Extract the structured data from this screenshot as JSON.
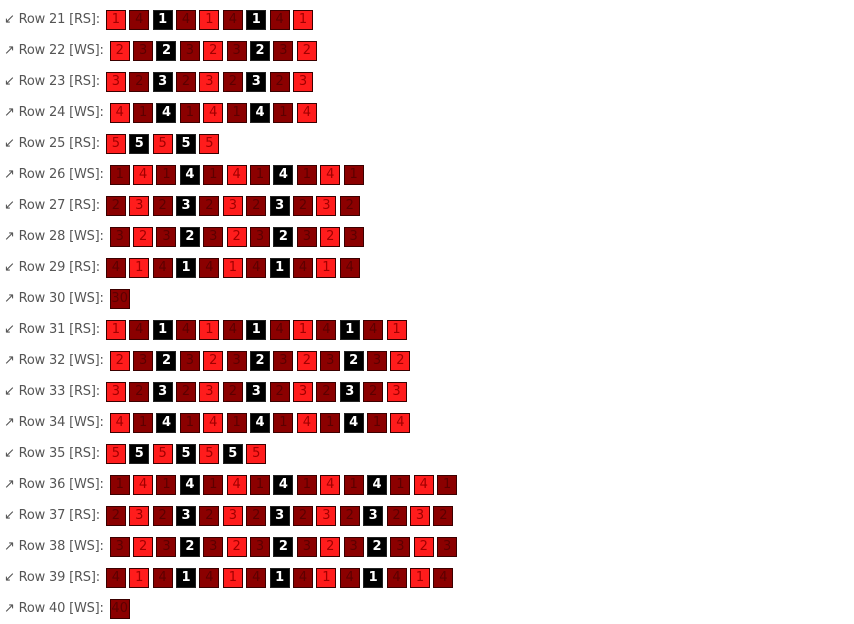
{
  "colors": {
    "r": "#ff1c1c",
    "d": "#8b0000",
    "k": "#000000"
  },
  "icons": {
    "RS": "arrow-down-left-icon ↙",
    "WS": "arrow-up-right-icon ↗"
  },
  "rows": [
    {
      "label": "↙ Row 21 [RS]:",
      "side": "RS",
      "colors": "rdkdrdkdr",
      "values": [
        "1",
        "4",
        "1",
        "4",
        "1",
        "4",
        "1",
        "4",
        "1"
      ]
    },
    {
      "label": "↗ Row 22 [WS]:",
      "side": "WS",
      "colors": "rdkdrdkdr",
      "values": [
        "2",
        "3",
        "2",
        "3",
        "2",
        "3",
        "2",
        "3",
        "2"
      ]
    },
    {
      "label": "↙ Row 23 [RS]:",
      "side": "RS",
      "colors": "rdkdrdkdr",
      "values": [
        "3",
        "2",
        "3",
        "2",
        "3",
        "2",
        "3",
        "2",
        "3"
      ]
    },
    {
      "label": "↗ Row 24 [WS]:",
      "side": "WS",
      "colors": "rdkdrdkdr",
      "values": [
        "4",
        "1",
        "4",
        "1",
        "4",
        "1",
        "4",
        "1",
        "4"
      ]
    },
    {
      "label": "↙ Row 25 [RS]:",
      "side": "RS",
      "colors": "rkrkr",
      "values": [
        "5",
        "5",
        "5",
        "5",
        "5"
      ]
    },
    {
      "label": "↗ Row 26 [WS]:",
      "side": "WS",
      "colors": "drdkdrdkdrd",
      "values": [
        "1",
        "4",
        "1",
        "4",
        "1",
        "4",
        "1",
        "4",
        "1",
        "4",
        "1"
      ]
    },
    {
      "label": "↙ Row 27 [RS]:",
      "side": "RS",
      "colors": "drdkdrdkdrd",
      "values": [
        "2",
        "3",
        "2",
        "3",
        "2",
        "3",
        "2",
        "3",
        "2",
        "3",
        "2"
      ]
    },
    {
      "label": "↗ Row 28 [WS]:",
      "side": "WS",
      "colors": "drdkdrdkdrd",
      "values": [
        "3",
        "2",
        "3",
        "2",
        "3",
        "2",
        "3",
        "2",
        "3",
        "2",
        "3"
      ]
    },
    {
      "label": "↙ Row 29 [RS]:",
      "side": "RS",
      "colors": "drdkdrdkdrd",
      "values": [
        "4",
        "1",
        "4",
        "1",
        "4",
        "1",
        "4",
        "1",
        "4",
        "1",
        "4"
      ]
    },
    {
      "label": "↗ Row 30 [WS]:",
      "side": "WS",
      "colors": "d",
      "values": [
        "30"
      ]
    },
    {
      "label": "↙ Row 31 [RS]:",
      "side": "RS",
      "colors": "rdkdrdkdrdkdr",
      "values": [
        "1",
        "4",
        "1",
        "4",
        "1",
        "4",
        "1",
        "4",
        "1",
        "4",
        "1",
        "4",
        "1"
      ]
    },
    {
      "label": "↗ Row 32 [WS]:",
      "side": "WS",
      "colors": "rdkdrdkdrdkdr",
      "values": [
        "2",
        "3",
        "2",
        "3",
        "2",
        "3",
        "2",
        "3",
        "2",
        "3",
        "2",
        "3",
        "2"
      ]
    },
    {
      "label": "↙ Row 33 [RS]:",
      "side": "RS",
      "colors": "rdkdrdkdrdkdr",
      "values": [
        "3",
        "2",
        "3",
        "2",
        "3",
        "2",
        "3",
        "2",
        "3",
        "2",
        "3",
        "2",
        "3"
      ]
    },
    {
      "label": "↗ Row 34 [WS]:",
      "side": "WS",
      "colors": "rdkdrdkdrdkdr",
      "values": [
        "4",
        "1",
        "4",
        "1",
        "4",
        "1",
        "4",
        "1",
        "4",
        "1",
        "4",
        "1",
        "4"
      ]
    },
    {
      "label": "↙ Row 35 [RS]:",
      "side": "RS",
      "colors": "rkrkrkr",
      "values": [
        "5",
        "5",
        "5",
        "5",
        "5",
        "5",
        "5"
      ]
    },
    {
      "label": "↗ Row 36 [WS]:",
      "side": "WS",
      "colors": "drdkdrdkdrdkdrd",
      "values": [
        "1",
        "4",
        "1",
        "4",
        "1",
        "4",
        "1",
        "4",
        "1",
        "4",
        "1",
        "4",
        "1",
        "4",
        "1"
      ]
    },
    {
      "label": "↙ Row 37 [RS]:",
      "side": "RS",
      "colors": "drdkdrdkdrdkdrd",
      "values": [
        "2",
        "3",
        "2",
        "3",
        "2",
        "3",
        "2",
        "3",
        "2",
        "3",
        "2",
        "3",
        "2",
        "3",
        "2"
      ]
    },
    {
      "label": "↗ Row 38 [WS]:",
      "side": "WS",
      "colors": "drdkdrdkdrdkdrd",
      "values": [
        "3",
        "2",
        "3",
        "2",
        "3",
        "2",
        "3",
        "2",
        "3",
        "2",
        "3",
        "2",
        "3",
        "2",
        "3"
      ]
    },
    {
      "label": "↙ Row 39 [RS]:",
      "side": "RS",
      "colors": "drdkdrdkdrdkdrd",
      "values": [
        "4",
        "1",
        "4",
        "1",
        "4",
        "1",
        "4",
        "1",
        "4",
        "1",
        "4",
        "1",
        "4",
        "1",
        "4"
      ]
    },
    {
      "label": "↗ Row 40 [WS]:",
      "side": "WS",
      "colors": "d",
      "values": [
        "40"
      ]
    }
  ]
}
